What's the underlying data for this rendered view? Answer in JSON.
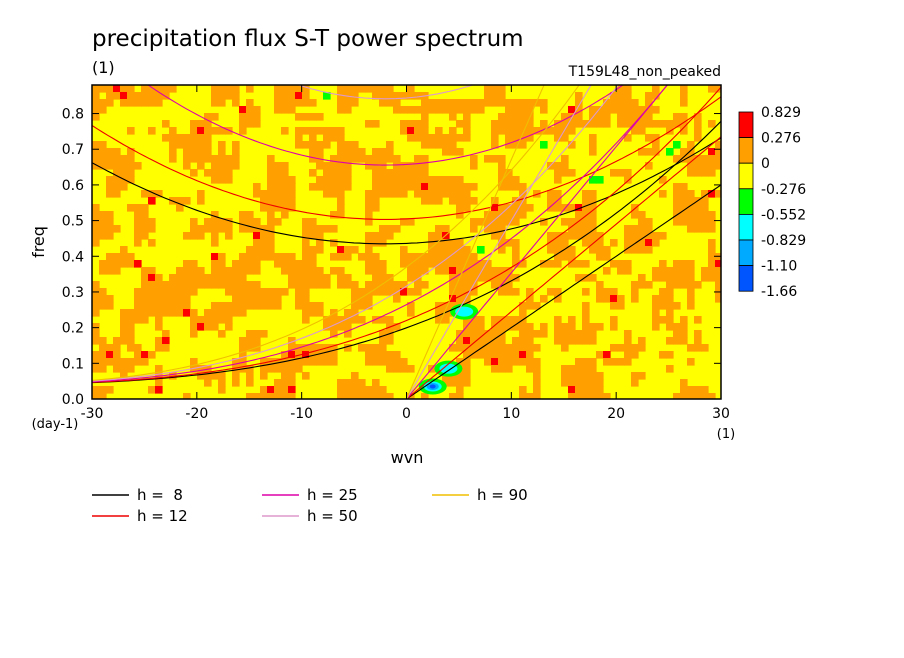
{
  "chart_data": {
    "type": "heatmap",
    "title": "precipitation flux S-T power spectrum",
    "subtitle": "(1)",
    "annotation": "T159L48_non_peaked",
    "xlabel": "wvn",
    "ylabel": "freq",
    "x_unit": "(1)",
    "y_unit": "(day-1)",
    "xlim": [
      -30,
      30
    ],
    "ylim": [
      0,
      0.88
    ],
    "xticks": [
      -30,
      -20,
      -10,
      0,
      10,
      20,
      30
    ],
    "xtick_labels": [
      "-30",
      "-20",
      "-10",
      "0",
      "10",
      "20",
      "30"
    ],
    "yticks": [
      0,
      0.1,
      0.2,
      0.3,
      0.4,
      0.5,
      0.6,
      0.7,
      0.8
    ],
    "ytick_labels": [
      "0.0",
      "0.1",
      "0.2",
      "0.3",
      "0.4",
      "0.5",
      "0.6",
      "0.7",
      "0.8"
    ],
    "colorbar": {
      "levels": [
        "0.829",
        "0.276",
        "0",
        "-0.276",
        "-0.552",
        "-0.829",
        "-1.10",
        "-1.66"
      ],
      "colors": [
        "#ff0000",
        "#ff9f00",
        "#ffff00",
        "#00ff00",
        "#00ffff",
        "#00aaff",
        "#0055ff"
      ]
    },
    "field_description": "noisy field dominated by 0..0.276 (orange) and -0.276..0 (yellow) bands; small red patches; green/cyan/blue minima near wvn 2-5, freq 0.03-0.25",
    "minima": [
      {
        "x": 2.5,
        "y": 0.035,
        "level": "-1.66"
      },
      {
        "x": 4.0,
        "y": 0.085,
        "level": "-0.829"
      },
      {
        "x": 5.5,
        "y": 0.245,
        "level": "-0.829"
      }
    ],
    "dispersion_curves": [
      {
        "name": "h =  8",
        "color": "#000000",
        "h": 8
      },
      {
        "name": "h = 12",
        "color": "#ee0000",
        "h": 12
      },
      {
        "name": "h = 25",
        "color": "#dd00aa",
        "h": 25
      },
      {
        "name": "h = 50",
        "color": "#dd99cc",
        "h": 50
      },
      {
        "name": "h = 90",
        "color": "#f0c000",
        "h": 90
      }
    ]
  }
}
